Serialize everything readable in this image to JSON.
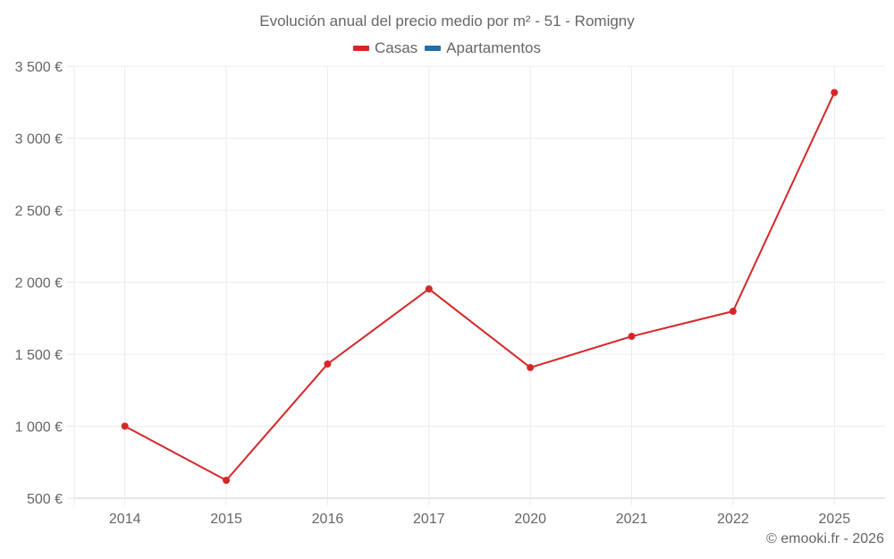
{
  "chart_data": {
    "type": "line",
    "title": "Evolución anual del precio medio por m² - 51 - Romigny",
    "categories": [
      "2014",
      "2015",
      "2016",
      "2017",
      "2020",
      "2021",
      "2022",
      "2025"
    ],
    "series": [
      {
        "name": "Casas",
        "color": "#d62728",
        "values": [
          1000,
          624,
          1432,
          1953,
          1407,
          1624,
          1798,
          3317
        ]
      },
      {
        "name": "Apartamentos",
        "color": "#1f6fa8",
        "values": []
      }
    ],
    "xlabel": "",
    "ylabel": "",
    "ylim": [
      500,
      3500
    ],
    "yticks": [
      500,
      1000,
      1500,
      2000,
      2500,
      3000,
      3500
    ],
    "ytick_labels": [
      "500 €",
      "1 000 €",
      "1 500 €",
      "2 000 €",
      "2 500 €",
      "3 000 €",
      "3 500 €"
    ],
    "grid": true,
    "legend_position": "top"
  },
  "legend": {
    "items": [
      {
        "label": "Casas",
        "color": "#d62728"
      },
      {
        "label": "Apartamentos",
        "color": "#1f6fa8"
      }
    ]
  },
  "credit": "© emooki.fr - 2026"
}
